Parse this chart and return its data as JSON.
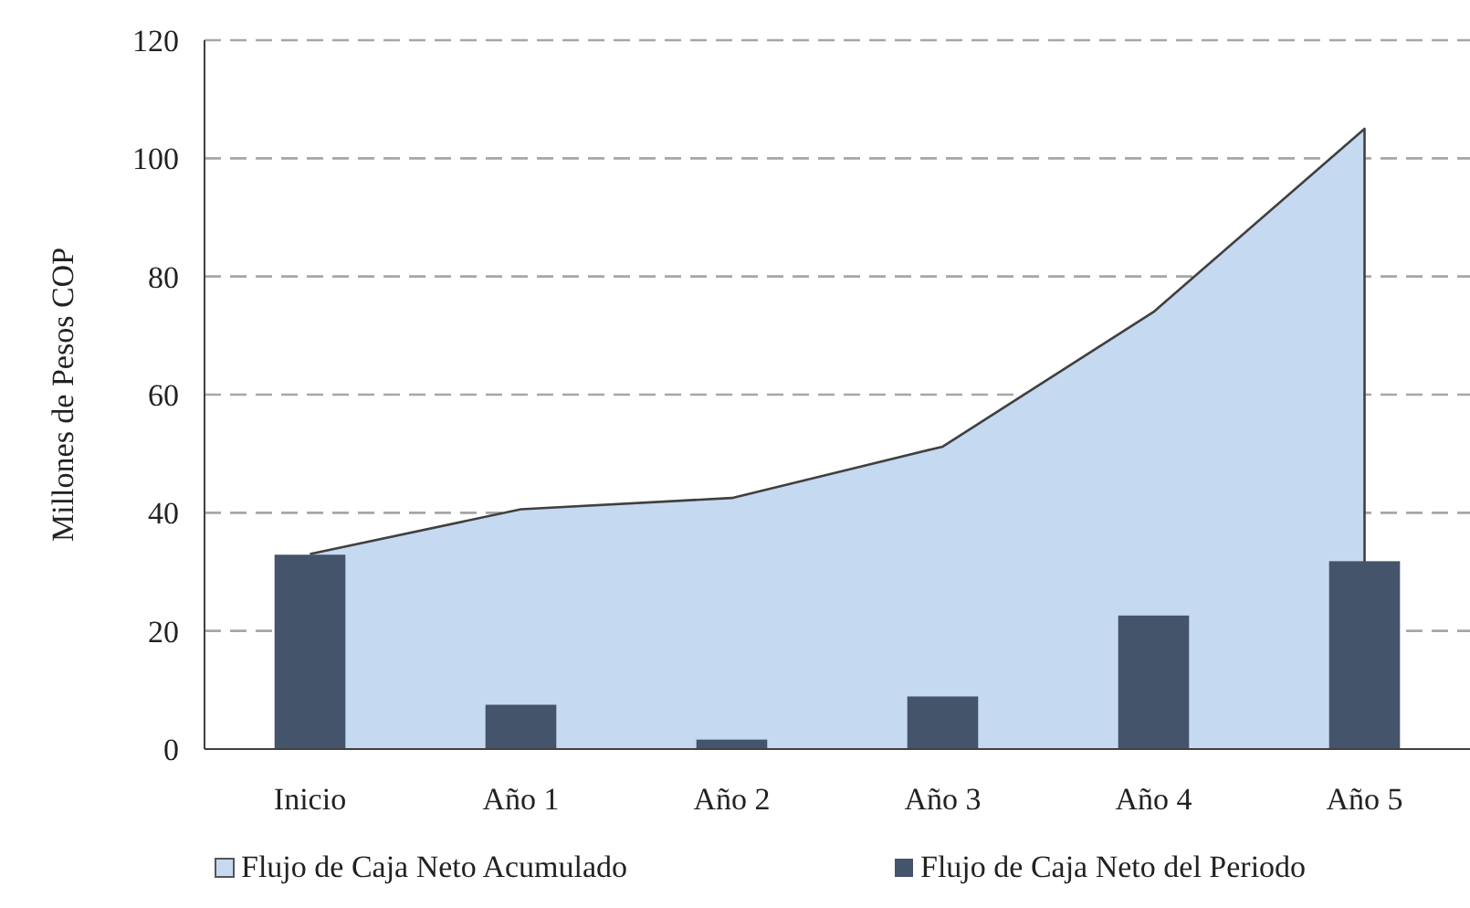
{
  "chart_data": {
    "type": "bar",
    "ylabel": "Millones de Pesos COP",
    "categories": [
      "Inicio",
      "Año 1",
      "Año 2",
      "Año 3",
      "Año 4",
      "Año 5"
    ],
    "series": [
      {
        "name": "Flujo de Caja Neto Acumulado",
        "type": "area",
        "color": "#c5d9f1",
        "values": [
          33,
          40.6,
          42.5,
          51.2,
          74,
          105
        ]
      },
      {
        "name": "Flujo de Caja Neto del Periodo",
        "color": "#44546a",
        "values": [
          32.9,
          7.5,
          1.6,
          8.9,
          22.6,
          31.8
        ]
      }
    ],
    "ylim": [
      0,
      120
    ],
    "yticks": [
      0,
      20,
      40,
      60,
      80,
      100,
      120
    ],
    "grid": "y",
    "legend": "bottom"
  }
}
